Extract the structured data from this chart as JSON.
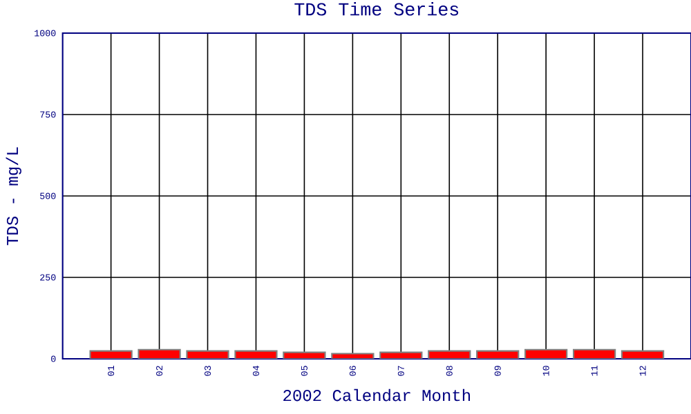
{
  "chart_data": {
    "type": "bar",
    "title": "TDS Time Series",
    "xlabel": "2002 Calendar Month",
    "ylabel": "TDS - mg/L",
    "categories": [
      "01",
      "02",
      "03",
      "04",
      "05",
      "06",
      "07",
      "08",
      "09",
      "10",
      "11",
      "12"
    ],
    "values": [
      24,
      28,
      24,
      24,
      20,
      16,
      20,
      24,
      24,
      28,
      28,
      24
    ],
    "color": "#ff0000",
    "ylim": [
      0,
      1000
    ],
    "yticks": [
      0,
      250,
      500,
      750,
      1000
    ],
    "grid": true
  }
}
